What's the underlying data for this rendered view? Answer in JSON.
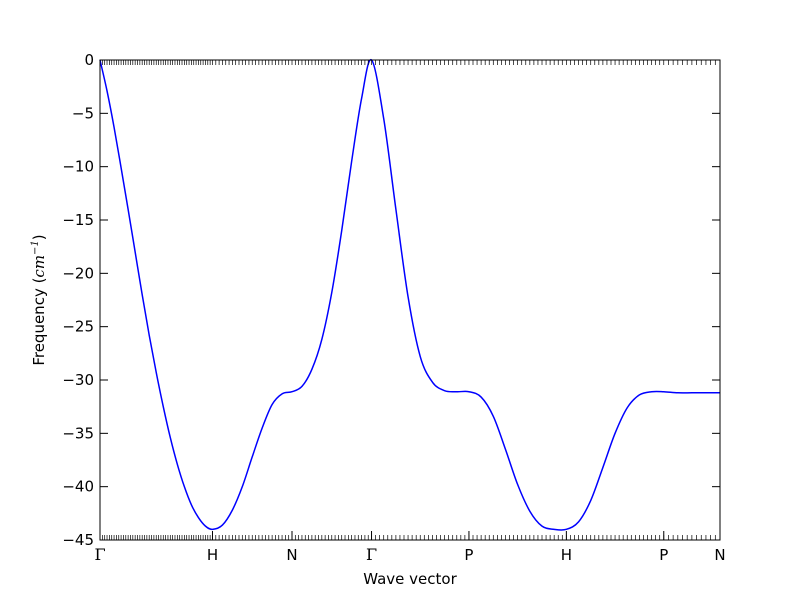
{
  "chart_data": {
    "type": "line",
    "xlabel": "Wave vector",
    "ylabel_prefix": "Frequency (",
    "ylabel_unit": "cm",
    "ylabel_exponent": "−1",
    "ylabel_suffix": ")",
    "ylim": [
      -45,
      0
    ],
    "yticks": [
      0,
      -5,
      -10,
      -15,
      -20,
      -25,
      -30,
      -35,
      -40,
      -45
    ],
    "ytick_labels": [
      "0",
      "−5",
      "−10",
      "−15",
      "−20",
      "−25",
      "−30",
      "−35",
      "−40",
      "−45"
    ],
    "xticks": [
      {
        "label": "Γ",
        "pos": 0.0
      },
      {
        "label": "H",
        "pos": 1.0
      },
      {
        "label": "N",
        "pos": 1.7071
      },
      {
        "label": "Γ",
        "pos": 2.4142
      },
      {
        "label": "P",
        "pos": 3.2802
      },
      {
        "label": "H",
        "pos": 4.1463
      },
      {
        "label": "P",
        "pos": 5.0123
      },
      {
        "label": "N",
        "pos": 5.5123
      }
    ],
    "xlim": [
      0,
      5.5123
    ],
    "grid": false,
    "series": [
      {
        "color": "#0000ff",
        "x": [
          0.0,
          0.0625,
          0.125,
          0.1875,
          0.25,
          0.3125,
          0.375,
          0.4375,
          0.5,
          0.5625,
          0.625,
          0.6875,
          0.75,
          0.8125,
          0.875,
          0.9375,
          1.0,
          1.0884,
          1.1768,
          1.2652,
          1.3536,
          1.4419,
          1.5303,
          1.6187,
          1.7071,
          1.7955,
          1.8839,
          1.9722,
          2.0606,
          2.149,
          2.2374,
          2.3258,
          2.4142,
          2.5224,
          2.6307,
          2.7389,
          2.8472,
          2.9555,
          3.0637,
          3.172,
          3.2802,
          3.3885,
          3.4967,
          3.605,
          3.7132,
          3.8215,
          3.9298,
          4.038,
          4.1463,
          4.2545,
          4.3628,
          4.471,
          4.5793,
          4.6876,
          4.7958,
          4.9041,
          5.0123,
          5.1373,
          5.2623,
          5.3873,
          5.5123
        ],
        "y": [
          0.0,
          -2.9,
          -6.3,
          -10.1,
          -14.0,
          -18.0,
          -22.0,
          -25.8,
          -29.3,
          -32.5,
          -35.4,
          -37.9,
          -40.0,
          -41.7,
          -42.9,
          -43.7,
          -44.0,
          -43.6,
          -42.2,
          -40.0,
          -37.2,
          -34.5,
          -32.3,
          -31.3,
          -31.1,
          -30.6,
          -29.0,
          -26.2,
          -21.8,
          -16.0,
          -9.5,
          -3.6,
          0.0,
          -5.5,
          -14.0,
          -22.2,
          -27.8,
          -30.2,
          -31.0,
          -31.1,
          -31.1,
          -31.6,
          -33.4,
          -36.5,
          -39.8,
          -42.3,
          -43.7,
          -44.0,
          -44.0,
          -43.3,
          -41.3,
          -38.2,
          -35.0,
          -32.6,
          -31.4,
          -31.1,
          -31.1,
          -31.2,
          -31.2,
          -31.2,
          -31.2
        ]
      }
    ]
  }
}
